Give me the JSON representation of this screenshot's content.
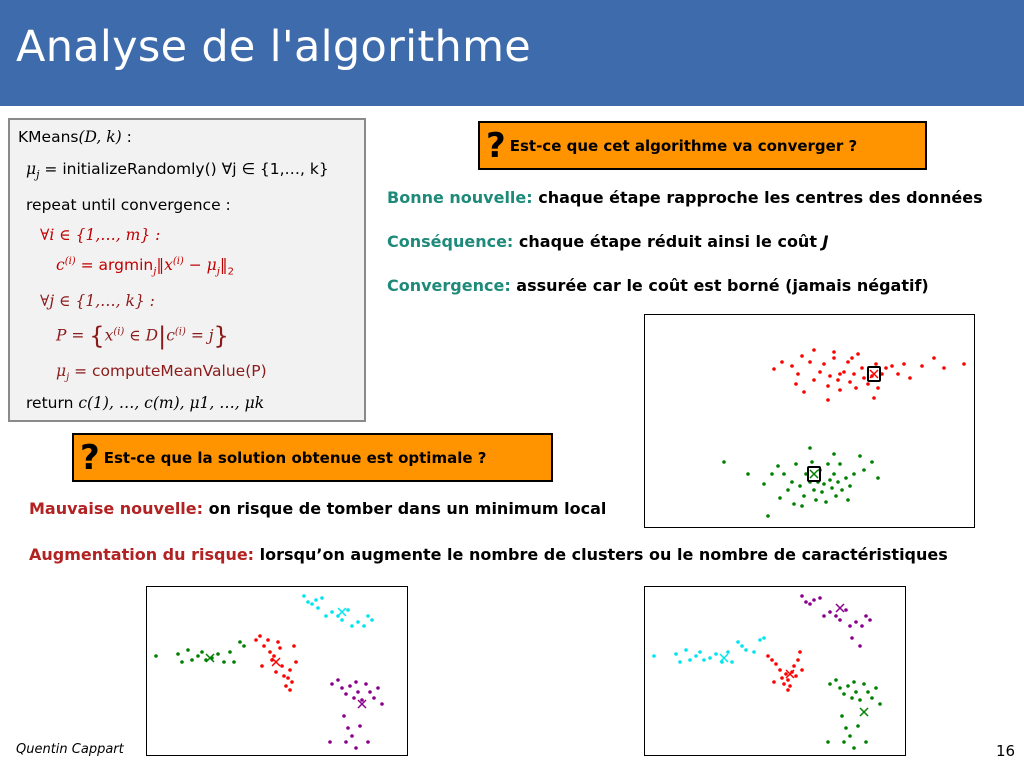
{
  "slide": {
    "title": "Analyse de l'algorithme",
    "author": "Quentin Cappart",
    "page": "16"
  },
  "algorithm": {
    "line1_fn": "KMeans",
    "line1_args": "(D, k)",
    "line1_colon": " :",
    "line2_mu": "μ",
    "line2_sub": "j",
    "line2_eq": " = initializeRandomly()   ∀j ∈ {1,…, k}",
    "line3": "repeat until convergence :",
    "line4": "∀i ∈ {1,…, m} :",
    "line5_c": "c",
    "line5_csup": "(i)",
    "line5_eq": " = argmin",
    "line5_j": "j",
    "line5_norm": "‖x",
    "line5_xsup": "(i)",
    "line5_minus": " − μ",
    "line5_musub": "j",
    "line5_end": "‖",
    "line5_two": "2",
    "line6": "∀j ∈ {1,…, k} :",
    "line7_p": "P = ",
    "line7_x": "x",
    "line7_xsup": "(i)",
    "line7_in": " ∈ D",
    "line7_c": "c",
    "line7_csup": "(i)",
    "line7_eq": " = j",
    "line8_mu": "μ",
    "line8_sub": "j",
    "line8_eq": " = computeMeanValue(P)",
    "line9_ret": "return ",
    "line9_vals": "c(1), …, c(m), μ1, …, μk"
  },
  "questions": {
    "converge": {
      "mark": "?",
      "text": "Est-ce que cet algorithme va converger ?"
    },
    "optimal": {
      "mark": "?",
      "text": "Est-ce que la solution obtenue est optimale  ?"
    }
  },
  "statements": {
    "good": {
      "label": "Bonne nouvelle:",
      "text": " chaque étape rapproche les centres des données"
    },
    "consequence": {
      "label": "Conséquence:",
      "text": " chaque étape réduit ainsi le coût ",
      "cost": "J"
    },
    "convergence": {
      "label": "Convergence:",
      "text": " assurée car le coût est borné (jamais négatif)"
    },
    "bad": {
      "label": "Mauvaise nouvelle:",
      "text": " on risque de tomber dans un minimum local"
    },
    "risk": {
      "label": "Augmentation du risque:",
      "text": " lorsqu’on augmente le nombre de clusters ou le nombre de caractéristiques"
    }
  },
  "colors": {
    "header": "#3d6bab",
    "question_bg": "#ff9300",
    "teal_label": "#1e8a7a",
    "red_label": "#b22222",
    "red": "#ff0000",
    "green": "#008000",
    "cyan": "#00e5ee",
    "purple": "#8b008b"
  },
  "chart_data": [
    {
      "type": "scatter",
      "series": [
        {
          "color": "#ff0000",
          "points": [
            [
              110,
              55
            ],
            [
              118,
              48
            ],
            [
              128,
              52
            ],
            [
              134,
              60
            ],
            [
              138,
              42
            ],
            [
              146,
              48
            ],
            [
              150,
              66
            ],
            [
              156,
              58
            ],
            [
              160,
              50
            ],
            [
              164,
              72
            ],
            [
              166,
              62
            ],
            [
              170,
              44
            ],
            [
              174,
              66
            ],
            [
              176,
              76
            ],
            [
              180,
              58
            ],
            [
              184,
              48
            ],
            [
              186,
              68
            ],
            [
              190,
              60
            ],
            [
              194,
              40
            ],
            [
              198,
              54
            ],
            [
              204,
              70
            ],
            [
              208,
              62
            ],
            [
              212,
              50
            ],
            [
              214,
              74
            ],
            [
              218,
              60
            ],
            [
              222,
              54
            ],
            [
              228,
              52
            ],
            [
              234,
              60
            ],
            [
              240,
              50
            ],
            [
              246,
              64
            ],
            [
              258,
              52
            ],
            [
              270,
              44
            ],
            [
              280,
              54
            ],
            [
              300,
              50
            ],
            [
              132,
              70
            ],
            [
              170,
              38
            ],
            [
              192,
              74
            ],
            [
              176,
              60
            ],
            [
              188,
              44
            ],
            [
              200,
              64
            ],
            [
              140,
              78
            ],
            [
              164,
              86
            ],
            [
              210,
              84
            ],
            [
              150,
              36
            ]
          ]
        },
        {
          "color": "#008000",
          "points": [
            [
              60,
              148
            ],
            [
              84,
              160
            ],
            [
              100,
              170
            ],
            [
              108,
              160
            ],
            [
              114,
              152
            ],
            [
              120,
              160
            ],
            [
              124,
              176
            ],
            [
              128,
              168
            ],
            [
              132,
              150
            ],
            [
              136,
              172
            ],
            [
              140,
              182
            ],
            [
              142,
              160
            ],
            [
              146,
              168
            ],
            [
              148,
              148
            ],
            [
              150,
              176
            ],
            [
              152,
              186
            ],
            [
              154,
              168
            ],
            [
              156,
              156
            ],
            [
              158,
              178
            ],
            [
              160,
              170
            ],
            [
              162,
              188
            ],
            [
              164,
              150
            ],
            [
              166,
              166
            ],
            [
              168,
              174
            ],
            [
              170,
              160
            ],
            [
              172,
              182
            ],
            [
              174,
              168
            ],
            [
              176,
              150
            ],
            [
              178,
              176
            ],
            [
              182,
              164
            ],
            [
              186,
              172
            ],
            [
              190,
              160
            ],
            [
              196,
              142
            ],
            [
              200,
              156
            ],
            [
              208,
              148
            ],
            [
              214,
              164
            ],
            [
              138,
              192
            ],
            [
              146,
              134
            ],
            [
              130,
              190
            ],
            [
              170,
              140
            ],
            [
              104,
              202
            ],
            [
              116,
              184
            ],
            [
              184,
              186
            ]
          ]
        }
      ],
      "centroids": [
        {
          "x": 210,
          "y": 60,
          "color": "#ff0000"
        },
        {
          "x": 150,
          "y": 160,
          "color": "#008000"
        }
      ]
    },
    {
      "type": "scatter",
      "series": [
        {
          "color": "#008000",
          "points": [
            [
              10,
              70
            ],
            [
              32,
              68
            ],
            [
              36,
              76
            ],
            [
              42,
              64
            ],
            [
              46,
              74
            ],
            [
              52,
              70
            ],
            [
              56,
              66
            ],
            [
              60,
              74
            ],
            [
              66,
              72
            ],
            [
              72,
              68
            ],
            [
              78,
              76
            ],
            [
              84,
              66
            ],
            [
              88,
              76
            ],
            [
              94,
              56
            ],
            [
              98,
              60
            ]
          ]
        },
        {
          "color": "#ff0000",
          "points": [
            [
              110,
              54
            ],
            [
              114,
              50
            ],
            [
              118,
              60
            ],
            [
              122,
              54
            ],
            [
              124,
              66
            ],
            [
              126,
              74
            ],
            [
              128,
              70
            ],
            [
              132,
              56
            ],
            [
              134,
              62
            ],
            [
              136,
              80
            ],
            [
              138,
              90
            ],
            [
              140,
              100
            ],
            [
              142,
              92
            ],
            [
              144,
              84
            ],
            [
              146,
              96
            ],
            [
              148,
              60
            ],
            [
              150,
              76
            ],
            [
              116,
              80
            ],
            [
              130,
              86
            ],
            [
              144,
              104
            ]
          ]
        },
        {
          "color": "#00e5ee",
          "points": [
            [
              158,
              10
            ],
            [
              162,
              16
            ],
            [
              166,
              18
            ],
            [
              170,
              14
            ],
            [
              172,
              22
            ],
            [
              176,
              12
            ],
            [
              180,
              30
            ],
            [
              186,
              26
            ],
            [
              192,
              30
            ],
            [
              196,
              34
            ],
            [
              202,
              24
            ],
            [
              206,
              40
            ],
            [
              212,
              36
            ],
            [
              218,
              40
            ],
            [
              222,
              30
            ],
            [
              226,
              34
            ]
          ]
        },
        {
          "color": "#8b008b",
          "points": [
            [
              186,
              98
            ],
            [
              192,
              94
            ],
            [
              196,
              102
            ],
            [
              200,
              108
            ],
            [
              204,
              100
            ],
            [
              208,
              112
            ],
            [
              212,
              106
            ],
            [
              216,
              114
            ],
            [
              220,
              98
            ],
            [
              224,
              106
            ],
            [
              228,
              112
            ],
            [
              232,
              102
            ],
            [
              236,
              118
            ],
            [
              210,
              96
            ],
            [
              198,
              130
            ],
            [
              202,
              142
            ],
            [
              206,
              150
            ],
            [
              200,
              156
            ],
            [
              210,
              162
            ],
            [
              214,
              140
            ],
            [
              222,
              156
            ],
            [
              184,
              156
            ]
          ]
        }
      ],
      "centroids": [
        {
          "x": 64,
          "y": 72,
          "color": "#008000"
        },
        {
          "x": 130,
          "y": 76,
          "color": "#ff0000"
        },
        {
          "x": 196,
          "y": 26,
          "color": "#00e5ee"
        },
        {
          "x": 216,
          "y": 118,
          "color": "#8b008b"
        }
      ]
    },
    {
      "type": "scatter",
      "series": [
        {
          "color": "#00e5ee",
          "points": [
            [
              10,
              70
            ],
            [
              32,
              68
            ],
            [
              36,
              76
            ],
            [
              42,
              64
            ],
            [
              46,
              74
            ],
            [
              52,
              70
            ],
            [
              56,
              66
            ],
            [
              60,
              74
            ],
            [
              66,
              72
            ],
            [
              72,
              68
            ],
            [
              78,
              76
            ],
            [
              84,
              66
            ],
            [
              88,
              76
            ],
            [
              94,
              56
            ],
            [
              98,
              60
            ],
            [
              102,
              64
            ],
            [
              110,
              66
            ],
            [
              116,
              54
            ],
            [
              120,
              52
            ]
          ]
        },
        {
          "color": "#ff0000",
          "points": [
            [
              124,
              70
            ],
            [
              128,
              74
            ],
            [
              132,
              78
            ],
            [
              136,
              84
            ],
            [
              138,
              92
            ],
            [
              140,
              98
            ],
            [
              142,
              88
            ],
            [
              144,
              94
            ],
            [
              146,
              100
            ],
            [
              148,
              86
            ],
            [
              150,
              80
            ],
            [
              152,
              90
            ],
            [
              154,
              74
            ],
            [
              156,
              66
            ],
            [
              130,
              96
            ],
            [
              144,
              104
            ],
            [
              158,
              84
            ]
          ]
        },
        {
          "color": "#8b008b",
          "points": [
            [
              158,
              10
            ],
            [
              162,
              16
            ],
            [
              166,
              18
            ],
            [
              170,
              14
            ],
            [
              176,
              12
            ],
            [
              180,
              30
            ],
            [
              186,
              26
            ],
            [
              192,
              30
            ],
            [
              196,
              34
            ],
            [
              202,
              24
            ],
            [
              206,
              40
            ],
            [
              212,
              36
            ],
            [
              218,
              40
            ],
            [
              222,
              30
            ],
            [
              226,
              34
            ],
            [
              208,
              52
            ],
            [
              216,
              60
            ]
          ]
        },
        {
          "color": "#008000",
          "points": [
            [
              186,
              98
            ],
            [
              192,
              94
            ],
            [
              196,
              102
            ],
            [
              200,
              108
            ],
            [
              204,
              100
            ],
            [
              208,
              112
            ],
            [
              212,
              106
            ],
            [
              216,
              114
            ],
            [
              220,
              98
            ],
            [
              224,
              106
            ],
            [
              228,
              112
            ],
            [
              232,
              102
            ],
            [
              236,
              118
            ],
            [
              210,
              96
            ],
            [
              198,
              130
            ],
            [
              202,
              142
            ],
            [
              206,
              150
            ],
            [
              200,
              156
            ],
            [
              210,
              162
            ],
            [
              214,
              140
            ],
            [
              222,
              156
            ],
            [
              184,
              156
            ]
          ]
        }
      ],
      "centroids": [
        {
          "x": 80,
          "y": 72,
          "color": "#00e5ee"
        },
        {
          "x": 146,
          "y": 88,
          "color": "#ff0000"
        },
        {
          "x": 196,
          "y": 22,
          "color": "#8b008b"
        },
        {
          "x": 220,
          "y": 126,
          "color": "#008000"
        }
      ]
    }
  ]
}
